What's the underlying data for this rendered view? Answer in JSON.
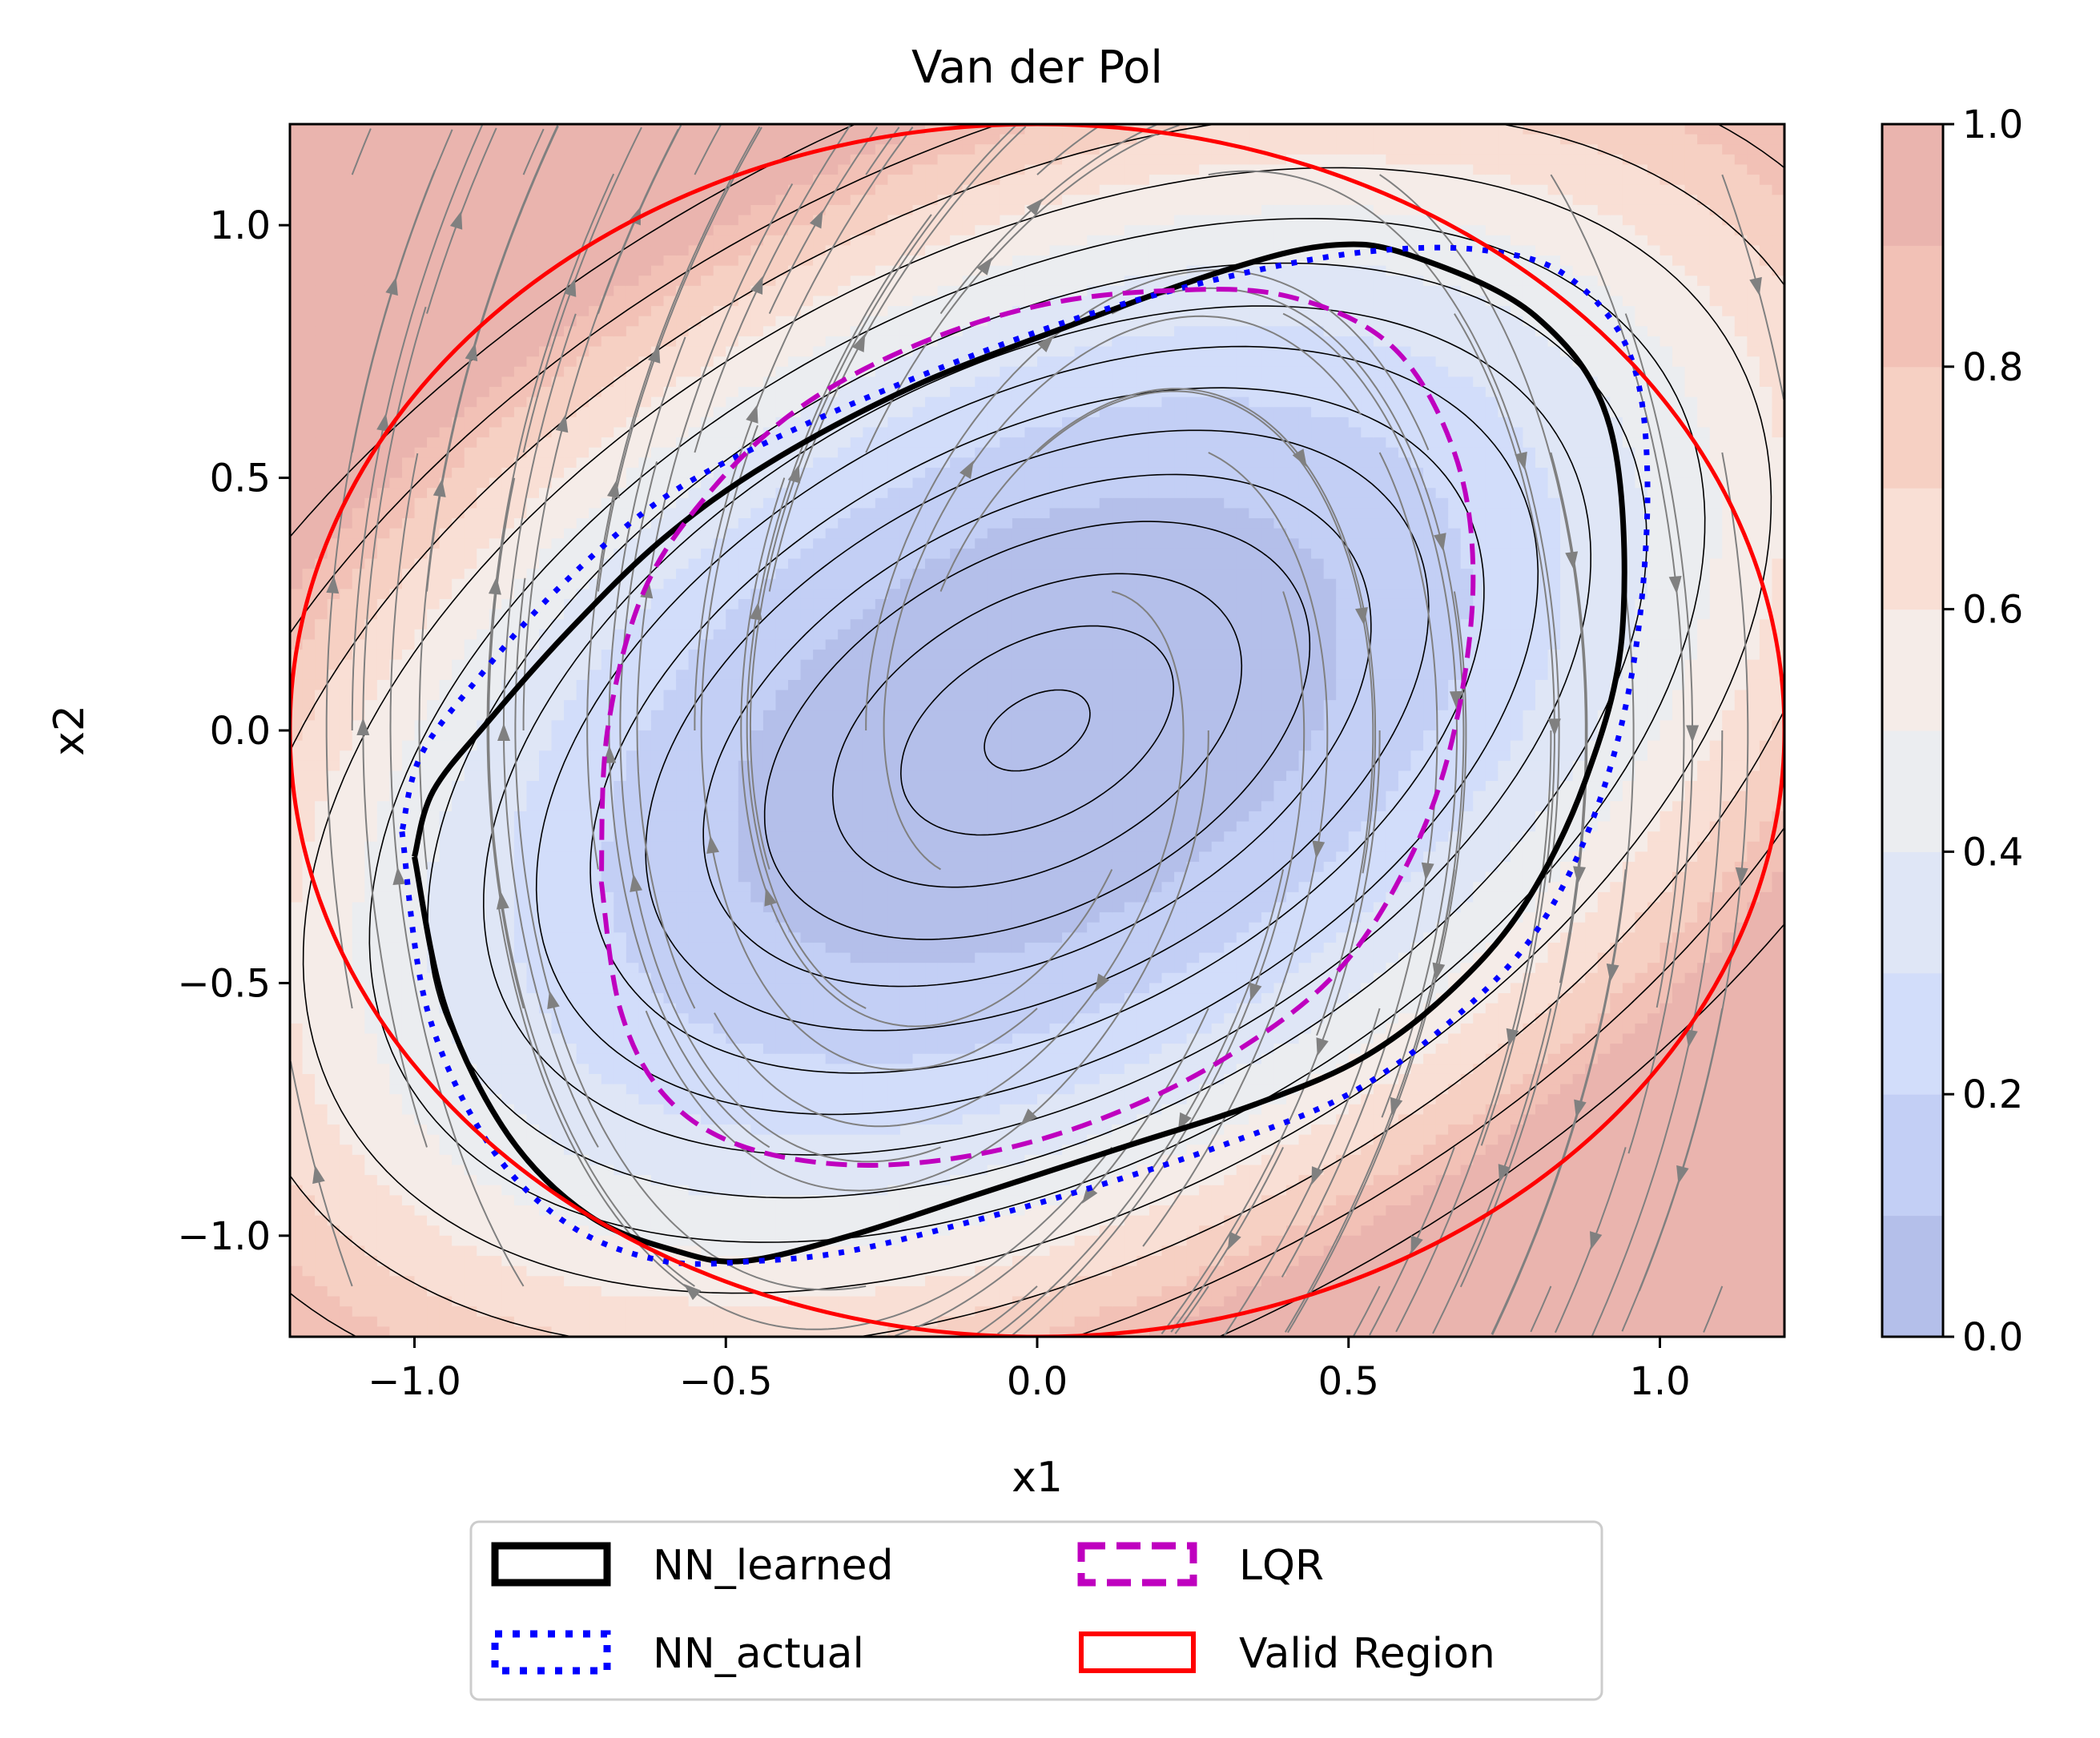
{
  "chart_data": {
    "type": "contour",
    "title": "Van der Pol",
    "xlabel": "x1",
    "ylabel": "x2",
    "xlim": [
      -1.2,
      1.2
    ],
    "ylim": [
      -1.2,
      1.2
    ],
    "x_ticks": [
      -1.0,
      -0.5,
      0.0,
      0.5,
      1.0
    ],
    "x_tick_labels": [
      "−1.0",
      "−0.5",
      "0.0",
      "0.5",
      "1.0"
    ],
    "y_ticks": [
      -1.0,
      -0.5,
      0.0,
      0.5,
      1.0
    ],
    "y_tick_labels": [
      "−1.0",
      "−0.5",
      "0.0",
      "0.5",
      "1.0"
    ],
    "colorbar": {
      "range": [
        0.0,
        1.0
      ],
      "ticks": [
        0.0,
        0.2,
        0.4,
        0.6,
        0.8,
        1.0
      ],
      "tick_labels": [
        "0.0",
        "0.2",
        "0.4",
        "0.6",
        "0.8",
        "1.0"
      ],
      "levels": [
        0.0,
        0.1,
        0.2,
        0.3,
        0.4,
        0.5,
        0.6,
        0.7,
        0.8,
        0.9,
        1.0
      ],
      "colors": [
        "#b4bfea",
        "#c3cff5",
        "#d2ddfa",
        "#dfe6f6",
        "#ebedf0",
        "#f5ece8",
        "#f9dfd5",
        "#f6d0c3",
        "#f2c1b6",
        "#eab4ae"
      ],
      "alpha": 0.8
    },
    "contour_overlay": "V(x) = 0.5 x1² − 0.43 x1 x2 + 0.56 x2², thin black level lines",
    "streamplot": {
      "system": "dx1/dt = x2, dx2/dt = −x1 − 2.3 x1 + 1.1 x2 − x1² x2",
      "color": "#808080"
    },
    "series": [
      {
        "name": "NN_learned",
        "style": "solid",
        "color": "#000000",
        "x": [
          -1.0,
          -0.95,
          -0.85,
          -0.72,
          -0.58,
          -0.47,
          -0.3,
          -0.1,
          0.15,
          0.35,
          0.52,
          0.66,
          0.78,
          0.88,
          0.94,
          0.92,
          0.8,
          0.6,
          0.47,
          0.3,
          0.05,
          -0.2,
          -0.43,
          -0.6,
          -0.75,
          -0.88,
          -0.97,
          -1.0
        ],
        "y": [
          -0.25,
          -0.55,
          -0.8,
          -0.96,
          -1.03,
          -1.05,
          -1.0,
          -0.92,
          -0.82,
          -0.74,
          -0.65,
          -0.52,
          -0.35,
          -0.1,
          0.2,
          0.6,
          0.82,
          0.94,
          0.96,
          0.91,
          0.8,
          0.68,
          0.53,
          0.38,
          0.2,
          0.02,
          -0.12,
          -0.25
        ]
      },
      {
        "name": "NN_actual",
        "style": "dotted",
        "color": "#0000ff",
        "x": [
          -1.02,
          -0.98,
          -0.88,
          -0.75,
          -0.6,
          -0.45,
          -0.3,
          -0.1,
          0.1,
          0.3,
          0.5,
          0.66,
          0.8,
          0.9,
          0.96,
          0.98,
          0.95,
          0.85,
          0.72,
          0.55,
          0.35,
          0.1,
          -0.15,
          -0.4,
          -0.6,
          -0.77,
          -0.9,
          -0.99,
          -1.02
        ],
        "y": [
          -0.2,
          -0.55,
          -0.82,
          -0.98,
          -1.05,
          -1.05,
          -1.03,
          -0.97,
          -0.9,
          -0.82,
          -0.72,
          -0.58,
          -0.4,
          -0.15,
          0.15,
          0.5,
          0.75,
          0.9,
          0.95,
          0.95,
          0.91,
          0.83,
          0.72,
          0.59,
          0.46,
          0.28,
          0.1,
          -0.05,
          -0.2
        ]
      },
      {
        "name": "LQR",
        "style": "dashed",
        "color": "#bf00bf",
        "x": [
          -0.7,
          -0.67,
          -0.6,
          -0.48,
          -0.3,
          -0.1,
          0.1,
          0.3,
          0.48,
          0.6,
          0.67,
          0.7,
          0.67,
          0.57,
          0.4,
          0.2,
          0.0,
          -0.2,
          -0.38,
          -0.52,
          -0.63,
          -0.69,
          -0.7
        ],
        "y": [
          -0.3,
          -0.55,
          -0.72,
          -0.82,
          -0.86,
          -0.84,
          -0.77,
          -0.65,
          -0.48,
          -0.25,
          0.0,
          0.3,
          0.55,
          0.76,
          0.86,
          0.87,
          0.84,
          0.76,
          0.64,
          0.48,
          0.28,
          0.0,
          -0.3
        ]
      },
      {
        "name": "Valid Region",
        "style": "solid",
        "color": "#ff0000",
        "shape": "ellipse",
        "center": [
          0.0,
          0.0
        ],
        "radii": [
          1.2,
          1.2
        ]
      }
    ],
    "legend": {
      "placement": "bottom-center",
      "columns": 2,
      "entries": [
        "NN_learned",
        "NN_actual",
        "LQR",
        "Valid Region"
      ]
    }
  }
}
